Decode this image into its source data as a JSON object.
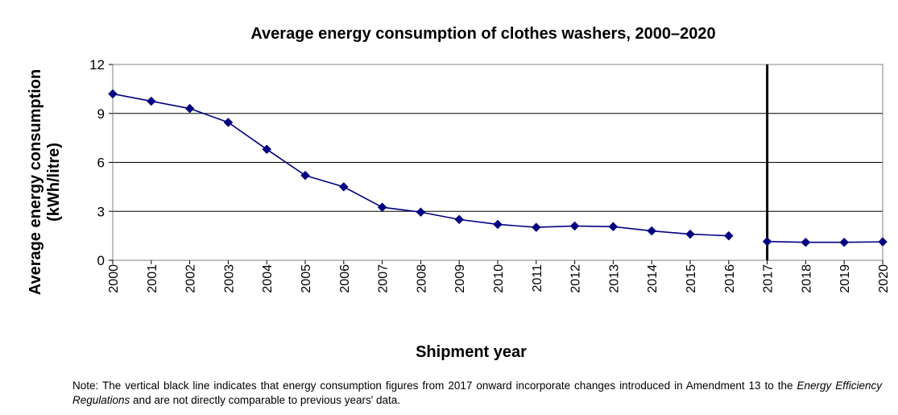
{
  "chart_data": {
    "type": "line",
    "title": "Average energy consumption of clothes washers, 2000–2020",
    "xlabel": "Shipment year",
    "ylabel_lines": [
      "Average energy consumption",
      "(kWh/litre)"
    ],
    "ylim": [
      0,
      12
    ],
    "yticks": [
      "0",
      "3",
      "6",
      "9",
      "12"
    ],
    "grid": true,
    "legend": "none",
    "categories": [
      "2000",
      "2001",
      "2002",
      "2003",
      "2004",
      "2005",
      "2006",
      "2007",
      "2008",
      "2009",
      "2010",
      "2011",
      "2012",
      "2013",
      "2014",
      "2015",
      "2016",
      "2017",
      "2018",
      "2019",
      "2020"
    ],
    "series": [
      {
        "color": "#000080",
        "values": [
          10.2,
          9.75,
          9.3,
          8.45,
          6.8,
          5.2,
          4.5,
          3.25,
          2.95,
          2.5,
          2.2,
          2.02,
          2.1,
          2.06,
          1.8,
          1.6,
          1.5,
          null,
          null,
          null,
          null
        ]
      },
      {
        "color": "#000080",
        "values": [
          null,
          null,
          null,
          null,
          null,
          null,
          null,
          null,
          null,
          null,
          null,
          null,
          null,
          null,
          null,
          null,
          null,
          1.15,
          1.1,
          1.1,
          1.13
        ]
      }
    ],
    "break_line": {
      "at": "2017",
      "color": "#000000"
    }
  },
  "note": {
    "before": "Note: The vertical black line indicates that energy consumption figures from 2017 onward incorporate changes introduced in Amendment 13 to the ",
    "emphasis": "Energy Efficiency Regulations",
    "after": " and are not directly comparable to previous years' data."
  }
}
